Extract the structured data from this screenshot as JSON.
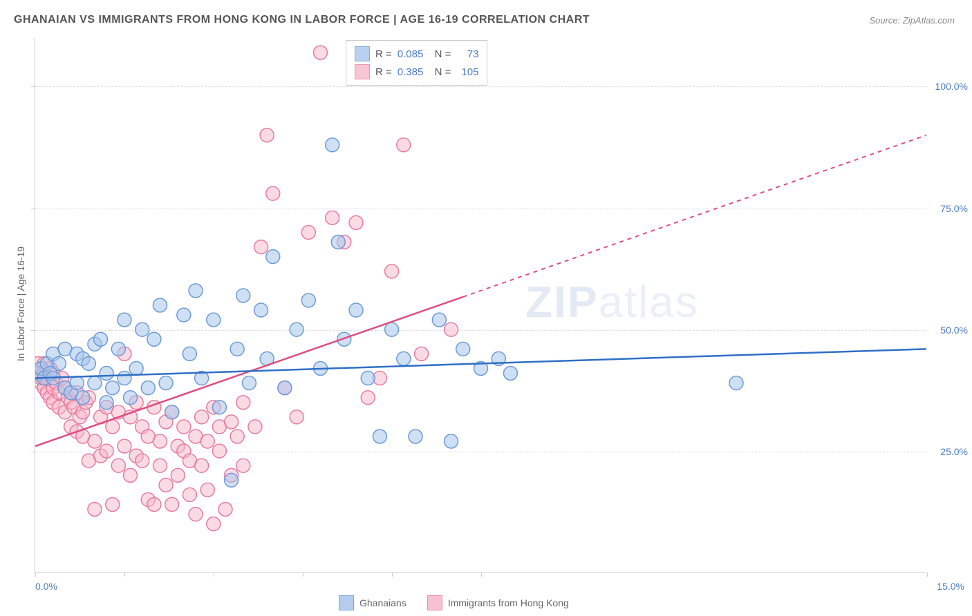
{
  "title": "GHANAIAN VS IMMIGRANTS FROM HONG KONG IN LABOR FORCE | AGE 16-19 CORRELATION CHART",
  "source": "Source: ZipAtlas.com",
  "watermark_bold": "ZIP",
  "watermark_light": "atlas",
  "ylabel": "In Labor Force | Age 16-19",
  "chart": {
    "type": "scatter",
    "background_color": "#ffffff",
    "grid_color": "#dddddd",
    "axis_color": "#cccccc",
    "tick_label_color": "#4a7bc4",
    "xlim": [
      0,
      15
    ],
    "ylim": [
      0,
      110
    ],
    "xticks": [
      0,
      1.5,
      3,
      4.5,
      6,
      7.5,
      15
    ],
    "xtick_labels_shown": {
      "0": "0.0%",
      "15": "15.0%"
    },
    "yticks": [
      25,
      50,
      75,
      100
    ],
    "ytick_labels": [
      "25.0%",
      "50.0%",
      "75.0%",
      "100.0%"
    ],
    "series": [
      {
        "name": "Ghanaians",
        "marker_color": "#a8c5eb",
        "marker_border": "#6b9bd8",
        "marker_fill_opacity": 0.55,
        "marker_radius": 10,
        "line_color": "#2e6fc7",
        "line_width": 2.5,
        "R": "0.085",
        "N": "73",
        "trend": {
          "x1": 0,
          "y1": 40,
          "x2": 15,
          "y2": 46,
          "solid_until_x": 15
        },
        "points": [
          [
            0.05,
            41
          ],
          [
            0.1,
            42
          ],
          [
            0.15,
            40
          ],
          [
            0.2,
            43
          ],
          [
            0.25,
            41
          ],
          [
            0.3,
            40
          ],
          [
            0.3,
            45
          ],
          [
            0.4,
            43
          ],
          [
            0.5,
            38
          ],
          [
            0.5,
            46
          ],
          [
            0.6,
            37
          ],
          [
            0.7,
            39
          ],
          [
            0.7,
            45
          ],
          [
            0.8,
            36
          ],
          [
            0.8,
            44
          ],
          [
            0.9,
            43
          ],
          [
            1.0,
            39
          ],
          [
            1.0,
            47
          ],
          [
            1.1,
            48
          ],
          [
            1.2,
            41
          ],
          [
            1.2,
            35
          ],
          [
            1.3,
            38
          ],
          [
            1.4,
            46
          ],
          [
            1.5,
            40
          ],
          [
            1.5,
            52
          ],
          [
            1.6,
            36
          ],
          [
            1.7,
            42
          ],
          [
            1.8,
            50
          ],
          [
            1.9,
            38
          ],
          [
            2.0,
            48
          ],
          [
            2.1,
            55
          ],
          [
            2.2,
            39
          ],
          [
            2.3,
            33
          ],
          [
            2.5,
            53
          ],
          [
            2.6,
            45
          ],
          [
            2.7,
            58
          ],
          [
            2.8,
            40
          ],
          [
            3.0,
            52
          ],
          [
            3.1,
            34
          ],
          [
            3.3,
            19
          ],
          [
            3.4,
            46
          ],
          [
            3.5,
            57
          ],
          [
            3.6,
            39
          ],
          [
            3.8,
            54
          ],
          [
            3.9,
            44
          ],
          [
            4.0,
            65
          ],
          [
            4.2,
            38
          ],
          [
            4.4,
            50
          ],
          [
            4.6,
            56
          ],
          [
            4.8,
            42
          ],
          [
            5.0,
            88
          ],
          [
            5.1,
            68
          ],
          [
            5.2,
            48
          ],
          [
            5.4,
            54
          ],
          [
            5.6,
            40
          ],
          [
            5.8,
            28
          ],
          [
            6.0,
            50
          ],
          [
            6.2,
            44
          ],
          [
            6.4,
            28
          ],
          [
            6.8,
            52
          ],
          [
            7.0,
            27
          ],
          [
            7.2,
            46
          ],
          [
            7.5,
            42
          ],
          [
            7.8,
            44
          ],
          [
            8.0,
            41
          ],
          [
            11.8,
            39
          ]
        ]
      },
      {
        "name": "Immigrants from Hong Kong",
        "marker_color": "#f5b8c9",
        "marker_border": "#e87ba0",
        "marker_fill_opacity": 0.5,
        "marker_radius": 10,
        "line_color": "#e04d7e",
        "line_width": 2.5,
        "R": "0.385",
        "N": "105",
        "trend": {
          "x1": 0,
          "y1": 26,
          "x2": 15,
          "y2": 90,
          "solid_until_x": 7.2
        },
        "points": [
          [
            0.05,
            43
          ],
          [
            0.05,
            41
          ],
          [
            0.1,
            42
          ],
          [
            0.1,
            39
          ],
          [
            0.1,
            40
          ],
          [
            0.15,
            41
          ],
          [
            0.15,
            38
          ],
          [
            0.15,
            43
          ],
          [
            0.2,
            37
          ],
          [
            0.2,
            40
          ],
          [
            0.25,
            36
          ],
          [
            0.25,
            42
          ],
          [
            0.3,
            38
          ],
          [
            0.3,
            35
          ],
          [
            0.3,
            41
          ],
          [
            0.35,
            39
          ],
          [
            0.4,
            37
          ],
          [
            0.4,
            34
          ],
          [
            0.45,
            40
          ],
          [
            0.5,
            33
          ],
          [
            0.5,
            38
          ],
          [
            0.55,
            36
          ],
          [
            0.6,
            30
          ],
          [
            0.6,
            35
          ],
          [
            0.65,
            34
          ],
          [
            0.7,
            29
          ],
          [
            0.7,
            37
          ],
          [
            0.75,
            32
          ],
          [
            0.8,
            33
          ],
          [
            0.8,
            28
          ],
          [
            0.85,
            35
          ],
          [
            0.9,
            23
          ],
          [
            0.9,
            36
          ],
          [
            1.0,
            27
          ],
          [
            1.0,
            13
          ],
          [
            1.1,
            32
          ],
          [
            1.1,
            24
          ],
          [
            1.2,
            34
          ],
          [
            1.2,
            25
          ],
          [
            1.3,
            30
          ],
          [
            1.3,
            14
          ],
          [
            1.4,
            33
          ],
          [
            1.4,
            22
          ],
          [
            1.5,
            45
          ],
          [
            1.5,
            26
          ],
          [
            1.6,
            32
          ],
          [
            1.6,
            20
          ],
          [
            1.7,
            24
          ],
          [
            1.7,
            35
          ],
          [
            1.8,
            30
          ],
          [
            1.8,
            23
          ],
          [
            1.9,
            28
          ],
          [
            1.9,
            15
          ],
          [
            2.0,
            14
          ],
          [
            2.0,
            34
          ],
          [
            2.1,
            27
          ],
          [
            2.1,
            22
          ],
          [
            2.2,
            31
          ],
          [
            2.2,
            18
          ],
          [
            2.3,
            14
          ],
          [
            2.3,
            33
          ],
          [
            2.4,
            26
          ],
          [
            2.4,
            20
          ],
          [
            2.5,
            25
          ],
          [
            2.5,
            30
          ],
          [
            2.6,
            23
          ],
          [
            2.6,
            16
          ],
          [
            2.7,
            28
          ],
          [
            2.7,
            12
          ],
          [
            2.8,
            32
          ],
          [
            2.8,
            22
          ],
          [
            2.9,
            27
          ],
          [
            2.9,
            17
          ],
          [
            3.0,
            34
          ],
          [
            3.0,
            10
          ],
          [
            3.1,
            30
          ],
          [
            3.1,
            25
          ],
          [
            3.2,
            13
          ],
          [
            3.3,
            31
          ],
          [
            3.3,
            20
          ],
          [
            3.4,
            28
          ],
          [
            3.5,
            35
          ],
          [
            3.5,
            22
          ],
          [
            3.7,
            30
          ],
          [
            3.8,
            67
          ],
          [
            3.9,
            90
          ],
          [
            4.0,
            78
          ],
          [
            4.2,
            38
          ],
          [
            4.4,
            32
          ],
          [
            4.6,
            70
          ],
          [
            4.8,
            107
          ],
          [
            5.0,
            73
          ],
          [
            5.2,
            68
          ],
          [
            5.4,
            72
          ],
          [
            5.6,
            36
          ],
          [
            5.8,
            40
          ],
          [
            6.0,
            62
          ],
          [
            6.2,
            88
          ],
          [
            6.5,
            45
          ],
          [
            7.0,
            50
          ]
        ]
      }
    ]
  },
  "legend_bottom": [
    {
      "label": "Ghanaians",
      "color": "#a8c5eb",
      "border": "#6b9bd8"
    },
    {
      "label": "Immigrants from Hong Kong",
      "color": "#f5b8c9",
      "border": "#e87ba0"
    }
  ]
}
